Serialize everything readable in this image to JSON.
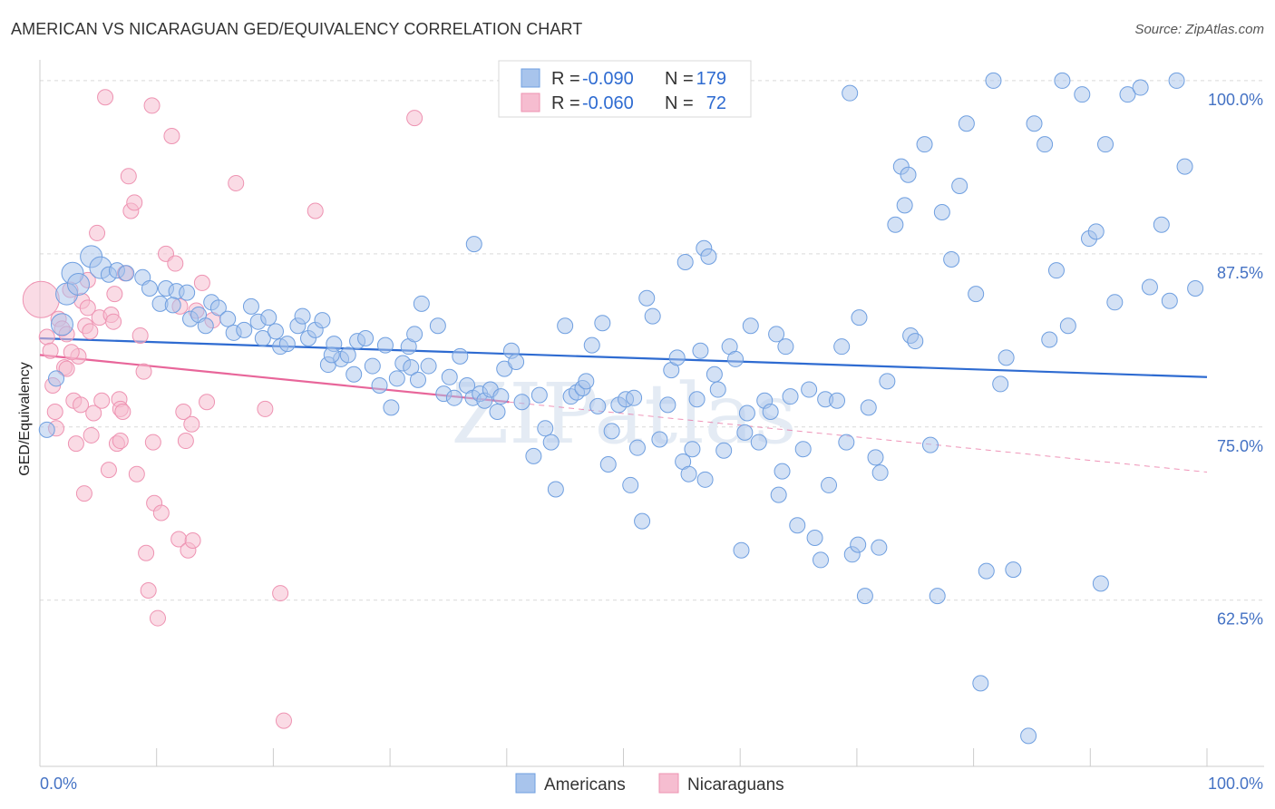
{
  "title": "AMERICAN VS NICARAGUAN GED/EQUIVALENCY CORRELATION CHART",
  "source": "Source: ZipAtlas.com",
  "watermark": "ZIPatlas",
  "colors": {
    "americans_fill": "#a8c4ec",
    "americans_stroke": "#6f9fe0",
    "americans_line": "#2e6bd1",
    "nicaraguans_fill": "#f6bdd0",
    "nicaraguans_stroke": "#ee93b2",
    "nicaraguans_line": "#e8669a",
    "tick_text": "#4472c4",
    "grid": "#d9d9d9"
  },
  "legend": {
    "rows": [
      {
        "r_label": "R = ",
        "r_value": "-0.090",
        "n_label": "N = ",
        "n_value": "179"
      },
      {
        "r_label": "R = ",
        "r_value": "-0.060",
        "n_label": "N = ",
        "n_value": "72"
      }
    ]
  },
  "chart_data": {
    "type": "scatter",
    "title": "AMERICAN VS NICARAGUAN GED/EQUIVALENCY CORRELATION CHART",
    "xlabel": "",
    "ylabel": "GED/Equivalency",
    "xlim": [
      0,
      100
    ],
    "ylim": [
      50.5,
      101.5
    ],
    "x_tick_labels": [
      "0.0%",
      "100.0%"
    ],
    "y_ticks": [
      62.5,
      75.0,
      87.5,
      100.0
    ],
    "y_tick_labels": [
      "62.5%",
      "75.0%",
      "87.5%",
      "100.0%"
    ],
    "grid": "horizontal dashed",
    "legend_position": "top-center",
    "series": [
      {
        "name": "Americans",
        "r": -0.09,
        "n": 179,
        "trend": {
          "x": [
            0,
            100
          ],
          "y": [
            81.4,
            78.6
          ]
        },
        "points": [
          [
            0.6,
            74.8
          ],
          [
            1.4,
            78.5
          ],
          [
            1.9,
            82.4
          ],
          [
            2.3,
            84.6
          ],
          [
            2.8,
            86.1
          ],
          [
            3.3,
            85.3
          ],
          [
            4.4,
            87.3
          ],
          [
            5.2,
            86.5
          ],
          [
            5.9,
            86.0
          ],
          [
            6.6,
            86.3
          ],
          [
            7.4,
            86.1
          ],
          [
            8.8,
            85.8
          ],
          [
            9.4,
            85.0
          ],
          [
            10.3,
            83.9
          ],
          [
            10.8,
            85.0
          ],
          [
            11.7,
            84.8
          ],
          [
            11.4,
            83.8
          ],
          [
            12.6,
            84.7
          ],
          [
            12.9,
            82.8
          ],
          [
            13.6,
            83.1
          ],
          [
            14.2,
            82.3
          ],
          [
            14.7,
            84.0
          ],
          [
            15.3,
            83.6
          ],
          [
            16.1,
            82.8
          ],
          [
            16.6,
            81.8
          ],
          [
            17.5,
            82.0
          ],
          [
            18.1,
            83.7
          ],
          [
            18.7,
            82.6
          ],
          [
            19.1,
            81.4
          ],
          [
            19.6,
            82.9
          ],
          [
            20.2,
            81.9
          ],
          [
            20.6,
            80.8
          ],
          [
            21.2,
            81.0
          ],
          [
            22.1,
            82.3
          ],
          [
            22.5,
            83.0
          ],
          [
            23.0,
            81.4
          ],
          [
            23.6,
            82.0
          ],
          [
            24.2,
            82.7
          ],
          [
            24.7,
            79.5
          ],
          [
            25.2,
            81.0
          ],
          [
            25.8,
            79.9
          ],
          [
            26.4,
            80.2
          ],
          [
            26.9,
            78.8
          ],
          [
            27.2,
            81.2
          ],
          [
            27.9,
            81.4
          ],
          [
            28.5,
            79.4
          ],
          [
            29.1,
            78.0
          ],
          [
            29.6,
            80.9
          ],
          [
            30.1,
            76.4
          ],
          [
            30.6,
            78.5
          ],
          [
            31.1,
            79.6
          ],
          [
            31.6,
            80.8
          ],
          [
            32.1,
            81.7
          ],
          [
            32.7,
            83.9
          ],
          [
            33.3,
            79.4
          ],
          [
            34.1,
            82.3
          ],
          [
            34.6,
            77.4
          ],
          [
            35.1,
            78.6
          ],
          [
            35.5,
            77.1
          ],
          [
            36.0,
            80.1
          ],
          [
            36.6,
            78.0
          ],
          [
            37.1,
            77.1
          ],
          [
            37.7,
            77.4
          ],
          [
            38.1,
            76.9
          ],
          [
            38.6,
            77.7
          ],
          [
            39.2,
            76.1
          ],
          [
            39.8,
            79.2
          ],
          [
            40.4,
            80.5
          ],
          [
            40.8,
            79.7
          ],
          [
            41.3,
            76.8
          ],
          [
            42.3,
            72.9
          ],
          [
            42.8,
            77.3
          ],
          [
            43.3,
            74.9
          ],
          [
            43.8,
            73.9
          ],
          [
            44.2,
            70.5
          ],
          [
            45.0,
            82.3
          ],
          [
            45.5,
            77.2
          ],
          [
            46.0,
            77.5
          ],
          [
            46.5,
            77.8
          ],
          [
            46.8,
            78.3
          ],
          [
            47.3,
            80.9
          ],
          [
            47.8,
            76.5
          ],
          [
            48.2,
            82.5
          ],
          [
            48.7,
            72.3
          ],
          [
            49.0,
            74.7
          ],
          [
            49.6,
            76.6
          ],
          [
            50.2,
            77.0
          ],
          [
            50.6,
            70.8
          ],
          [
            50.9,
            77.1
          ],
          [
            51.6,
            68.2
          ],
          [
            52.0,
            84.3
          ],
          [
            52.5,
            83.0
          ],
          [
            53.1,
            74.1
          ],
          [
            54.1,
            79.1
          ],
          [
            54.6,
            80.0
          ],
          [
            55.1,
            72.5
          ],
          [
            55.9,
            73.4
          ],
          [
            56.3,
            77.0
          ],
          [
            56.6,
            80.5
          ],
          [
            56.9,
            87.9
          ],
          [
            57.3,
            87.3
          ],
          [
            57.8,
            78.8
          ],
          [
            58.1,
            77.7
          ],
          [
            58.6,
            73.3
          ],
          [
            59.1,
            80.8
          ],
          [
            59.6,
            79.9
          ],
          [
            60.1,
            66.1
          ],
          [
            60.4,
            74.6
          ],
          [
            60.6,
            76.0
          ],
          [
            61.6,
            73.9
          ],
          [
            62.1,
            76.9
          ],
          [
            62.6,
            76.1
          ],
          [
            63.1,
            81.7
          ],
          [
            63.6,
            71.8
          ],
          [
            63.9,
            80.8
          ],
          [
            64.3,
            77.2
          ],
          [
            64.9,
            67.9
          ],
          [
            65.4,
            73.4
          ],
          [
            65.9,
            77.7
          ],
          [
            66.4,
            67.0
          ],
          [
            66.9,
            65.4
          ],
          [
            67.3,
            77.0
          ],
          [
            67.6,
            70.8
          ],
          [
            68.3,
            76.9
          ],
          [
            68.7,
            80.8
          ],
          [
            69.1,
            73.9
          ],
          [
            69.6,
            65.8
          ],
          [
            70.1,
            66.5
          ],
          [
            70.7,
            62.8
          ],
          [
            71.0,
            76.4
          ],
          [
            71.6,
            72.8
          ],
          [
            72.0,
            71.7
          ],
          [
            72.6,
            78.3
          ],
          [
            73.3,
            89.6
          ],
          [
            73.8,
            93.8
          ],
          [
            74.1,
            91.0
          ],
          [
            74.6,
            81.6
          ],
          [
            75.0,
            81.2
          ],
          [
            75.8,
            95.4
          ],
          [
            76.3,
            73.7
          ],
          [
            76.9,
            62.8
          ],
          [
            77.3,
            90.5
          ],
          [
            78.1,
            87.1
          ],
          [
            78.8,
            92.4
          ],
          [
            79.4,
            96.9
          ],
          [
            80.2,
            84.6
          ],
          [
            80.6,
            56.5
          ],
          [
            81.1,
            64.6
          ],
          [
            81.7,
            100.0
          ],
          [
            82.3,
            78.1
          ],
          [
            83.4,
            64.7
          ],
          [
            84.7,
            52.7
          ],
          [
            85.2,
            96.9
          ],
          [
            86.1,
            95.4
          ],
          [
            87.1,
            86.3
          ],
          [
            87.6,
            100.0
          ],
          [
            88.1,
            82.3
          ],
          [
            89.3,
            99.0
          ],
          [
            89.9,
            88.6
          ],
          [
            90.5,
            89.1
          ],
          [
            91.3,
            95.4
          ],
          [
            92.1,
            84.0
          ],
          [
            93.2,
            99.0
          ],
          [
            94.3,
            99.5
          ],
          [
            95.1,
            85.1
          ],
          [
            96.1,
            89.6
          ],
          [
            96.8,
            84.1
          ],
          [
            97.4,
            100.0
          ],
          [
            98.1,
            93.8
          ],
          [
            99.0,
            85.0
          ],
          [
            51.2,
            73.5
          ],
          [
            55.6,
            71.6
          ],
          [
            71.9,
            66.3
          ],
          [
            57.0,
            71.2
          ],
          [
            53.8,
            76.6
          ],
          [
            37.2,
            88.2
          ],
          [
            25.0,
            80.2
          ],
          [
            31.8,
            79.3
          ],
          [
            60.9,
            82.3
          ],
          [
            39.5,
            77.2
          ],
          [
            74.4,
            93.2
          ],
          [
            86.5,
            81.3
          ],
          [
            70.2,
            82.9
          ],
          [
            90.9,
            63.7
          ],
          [
            69.4,
            99.1
          ],
          [
            32.4,
            78.4
          ],
          [
            55.3,
            86.9
          ],
          [
            82.8,
            80.0
          ],
          [
            63.3,
            70.1
          ]
        ]
      },
      {
        "name": "Nicaraguans",
        "r": -0.06,
        "n": 72,
        "trend": {
          "x": [
            0,
            40.2
          ],
          "y": [
            80.2,
            76.8
          ]
        },
        "points": [
          [
            0.1,
            84.2
          ],
          [
            0.6,
            81.5
          ],
          [
            0.9,
            80.5
          ],
          [
            1.1,
            78.0
          ],
          [
            1.3,
            76.1
          ],
          [
            1.4,
            74.9
          ],
          [
            1.6,
            82.8
          ],
          [
            1.9,
            82.1
          ],
          [
            2.1,
            79.3
          ],
          [
            2.3,
            81.7
          ],
          [
            2.6,
            84.9
          ],
          [
            2.9,
            76.9
          ],
          [
            3.1,
            73.8
          ],
          [
            3.3,
            80.1
          ],
          [
            3.5,
            76.6
          ],
          [
            3.6,
            84.1
          ],
          [
            3.8,
            70.2
          ],
          [
            3.9,
            82.3
          ],
          [
            4.1,
            83.6
          ],
          [
            4.3,
            81.9
          ],
          [
            4.4,
            74.4
          ],
          [
            4.6,
            76.0
          ],
          [
            4.9,
            89.0
          ],
          [
            5.1,
            82.9
          ],
          [
            5.3,
            76.9
          ],
          [
            5.6,
            98.8
          ],
          [
            5.9,
            71.9
          ],
          [
            6.1,
            83.1
          ],
          [
            6.3,
            82.6
          ],
          [
            6.4,
            84.6
          ],
          [
            6.6,
            73.8
          ],
          [
            6.8,
            77.0
          ],
          [
            6.9,
            76.3
          ],
          [
            7.1,
            76.1
          ],
          [
            7.6,
            93.1
          ],
          [
            7.8,
            90.6
          ],
          [
            8.1,
            91.2
          ],
          [
            8.3,
            71.6
          ],
          [
            8.6,
            81.6
          ],
          [
            8.9,
            79.0
          ],
          [
            9.1,
            65.9
          ],
          [
            9.3,
            63.2
          ],
          [
            9.6,
            98.2
          ],
          [
            9.8,
            69.5
          ],
          [
            10.1,
            61.2
          ],
          [
            10.4,
            68.8
          ],
          [
            10.8,
            87.5
          ],
          [
            11.3,
            96.0
          ],
          [
            11.6,
            86.8
          ],
          [
            11.9,
            66.9
          ],
          [
            12.3,
            76.1
          ],
          [
            12.5,
            74.0
          ],
          [
            12.7,
            66.1
          ],
          [
            13.1,
            66.8
          ],
          [
            13.4,
            83.4
          ],
          [
            13.9,
            85.4
          ],
          [
            14.3,
            76.8
          ],
          [
            16.8,
            92.6
          ],
          [
            19.3,
            76.3
          ],
          [
            20.6,
            63.0
          ],
          [
            20.9,
            53.8
          ],
          [
            23.6,
            90.6
          ],
          [
            32.1,
            97.3
          ],
          [
            2.7,
            80.4
          ],
          [
            6.9,
            74.0
          ],
          [
            7.3,
            86.1
          ],
          [
            9.7,
            73.9
          ],
          [
            2.3,
            79.2
          ],
          [
            4.1,
            85.6
          ],
          [
            12.0,
            83.7
          ],
          [
            14.8,
            82.7
          ],
          [
            13.0,
            75.2
          ]
        ]
      }
    ]
  },
  "bottom_legend": [
    {
      "label": "Americans"
    },
    {
      "label": "Nicaraguans"
    }
  ]
}
